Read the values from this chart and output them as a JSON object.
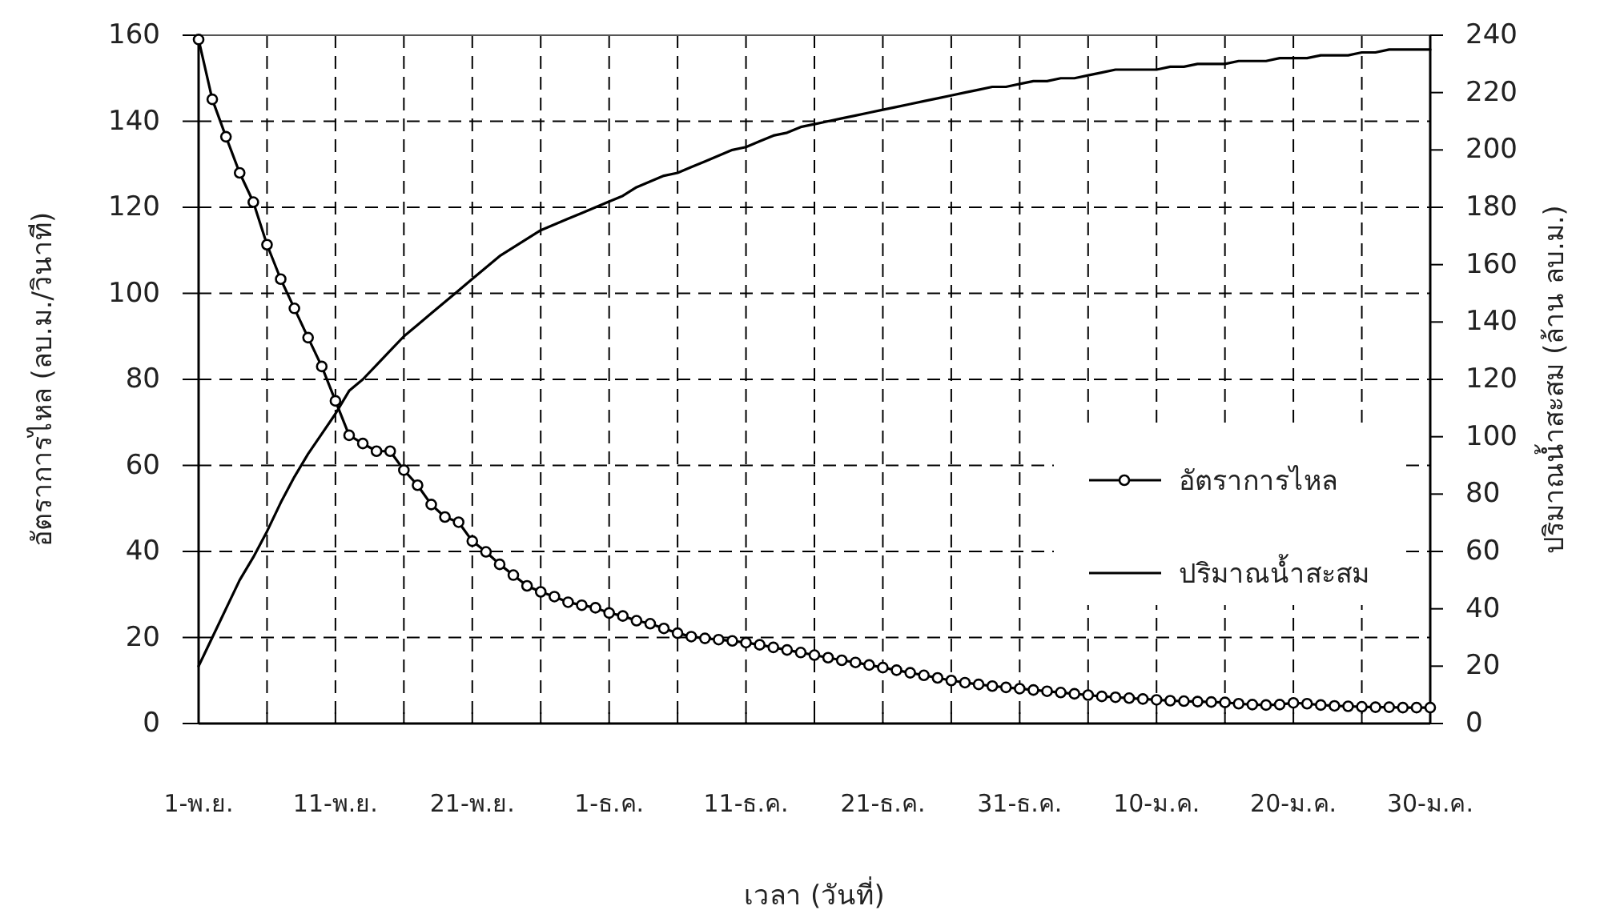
{
  "chart_data": {
    "type": "line",
    "xlabel": "เวลา (วันที่)",
    "ylabel": "อัตราการไหล    (ลบ.ม./วินาที)",
    "y2label": "ปริมาณน้ำสะสม (ล้าน ลบ.ม.)",
    "categories": [
      "1-พ.ย.",
      null,
      null,
      null,
      null,
      null,
      null,
      null,
      null,
      null,
      "11-พ.ย.",
      null,
      null,
      null,
      null,
      null,
      null,
      null,
      null,
      null,
      "21-พ.ย.",
      null,
      null,
      null,
      null,
      null,
      null,
      null,
      null,
      null,
      "1-ธ.ค.",
      null,
      null,
      null,
      null,
      null,
      null,
      null,
      null,
      null,
      "11-ธ.ค.",
      null,
      null,
      null,
      null,
      null,
      null,
      null,
      null,
      null,
      "21-ธ.ค.",
      null,
      null,
      null,
      null,
      null,
      null,
      null,
      null,
      null,
      "31-ธ.ค.",
      null,
      null,
      null,
      null,
      null,
      null,
      null,
      null,
      null,
      "10-ม.ค.",
      null,
      null,
      null,
      null,
      null,
      null,
      null,
      null,
      null,
      "20-ม.ค.",
      null,
      null,
      null,
      null,
      null,
      null,
      null,
      null,
      null,
      "30-ม.ค."
    ],
    "ylim": [
      0,
      160
    ],
    "yticks": [
      0,
      20,
      40,
      60,
      80,
      100,
      120,
      140,
      160
    ],
    "y2lim": [
      0,
      240
    ],
    "y2ticks": [
      0,
      20,
      40,
      60,
      80,
      100,
      120,
      140,
      160,
      180,
      200,
      220,
      240
    ],
    "grid": true,
    "legend": "right",
    "line_style": "solid",
    "series": [
      {
        "name": "อัตราการไหล",
        "color": "#000000",
        "marker": "circle",
        "values": [
          159,
          145.1,
          136.4,
          128,
          121.2,
          111.3,
          103.3,
          96.5,
          89.7,
          83,
          75,
          67,
          65.1,
          63.3,
          63.3,
          58.9,
          55.4,
          50.9,
          48,
          46.8,
          42.4,
          39.9,
          37,
          34.5,
          32,
          30.6,
          29.5,
          28.2,
          27.5,
          26.9,
          25.7,
          25,
          23.9,
          23.2,
          22.1,
          21,
          20.2,
          19.8,
          19.5,
          19.2,
          18.8,
          18.3,
          17.7,
          17.1,
          16.5,
          15.9,
          15.3,
          14.7,
          14.2,
          13.6,
          13,
          12.4,
          11.8,
          11.2,
          10.6,
          10,
          9.5,
          9.1,
          8.7,
          8.4,
          8.1,
          7.8,
          7.5,
          7.2,
          6.9,
          6.6,
          6.3,
          6.1,
          5.9,
          5.7,
          5.5,
          5.3,
          5.2,
          5.1,
          5,
          4.9,
          4.6,
          4.4,
          4.3,
          4.4,
          4.8,
          4.6,
          4.3,
          4.1,
          4,
          3.9,
          3.8,
          3.8,
          3.7,
          3.7,
          3.7
        ]
      },
      {
        "name": "ปริมาณน้ำสะสม",
        "color": "#000000",
        "marker": "none",
        "axis": "y2",
        "values": [
          20,
          30,
          40,
          50,
          58,
          67,
          77,
          86,
          94,
          101,
          108,
          116,
          120,
          125,
          130,
          135,
          139,
          143,
          147,
          151,
          155,
          159,
          163,
          166,
          169,
          172,
          174,
          176,
          178,
          180,
          182,
          184,
          187,
          189,
          191,
          192,
          194,
          196,
          198,
          200,
          201,
          203,
          205,
          206,
          208,
          209,
          210,
          211,
          212,
          213,
          214,
          215,
          216,
          217,
          218,
          219,
          220,
          221,
          222,
          222,
          223,
          224,
          224,
          225,
          225,
          226,
          227,
          228,
          228,
          228,
          228,
          229,
          229,
          230,
          230,
          230,
          231,
          231,
          231,
          232,
          232,
          232,
          233,
          233,
          233,
          234,
          234,
          235,
          235,
          235,
          235
        ]
      }
    ]
  }
}
